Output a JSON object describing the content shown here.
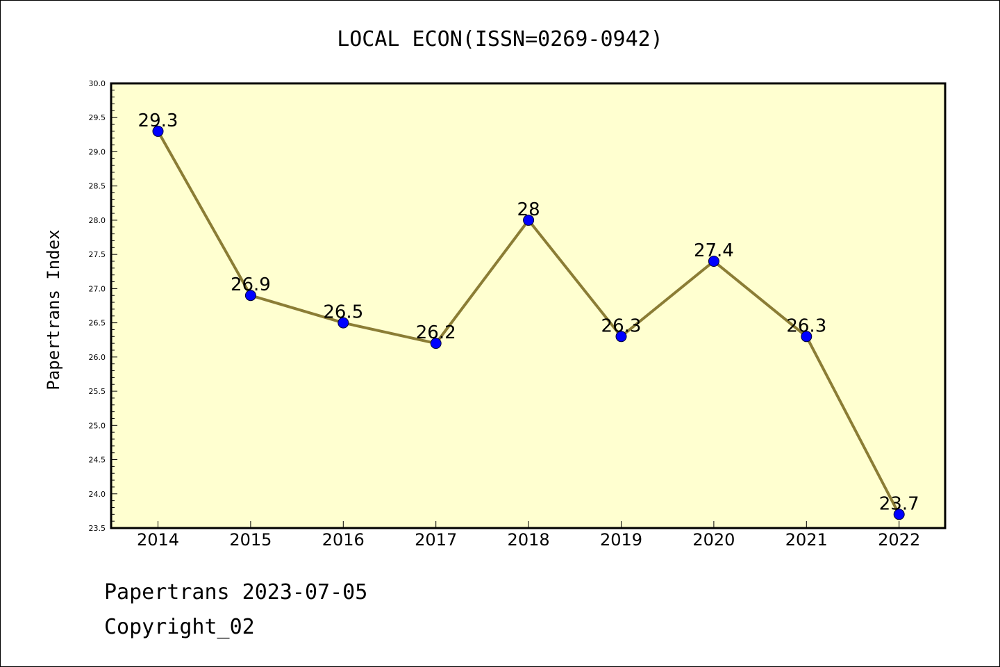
{
  "chart_data": {
    "type": "line",
    "title": "LOCAL ECON(ISSN=0269-0942)",
    "xlabel": "",
    "ylabel": "Papertrans Index",
    "categories": [
      "2014",
      "2015",
      "2016",
      "2017",
      "2018",
      "2019",
      "2020",
      "2021",
      "2022"
    ],
    "values": [
      29.3,
      26.9,
      26.5,
      26.2,
      28,
      26.3,
      27.4,
      26.3,
      23.7
    ],
    "data_labels": [
      "29.3",
      "26.9",
      "26.5",
      "26.2",
      "28",
      "26.3",
      "27.4",
      "26.3",
      "23.7"
    ],
    "ylim": [
      23.5,
      30.0
    ],
    "yticks": [
      "23.5",
      "24.0",
      "24.5",
      "25.0",
      "25.5",
      "26.0",
      "26.5",
      "27.0",
      "27.5",
      "28.0",
      "28.5",
      "29.0",
      "29.5",
      "30.0"
    ],
    "grid": false,
    "legend": "none",
    "colors": {
      "line": "#8b7d35",
      "marker": "#0000ff",
      "plot_background": "#ffffd0",
      "axes": "#000000"
    }
  },
  "footer": {
    "line1": "Papertrans 2023-07-05",
    "line2": "Copyright_02"
  }
}
